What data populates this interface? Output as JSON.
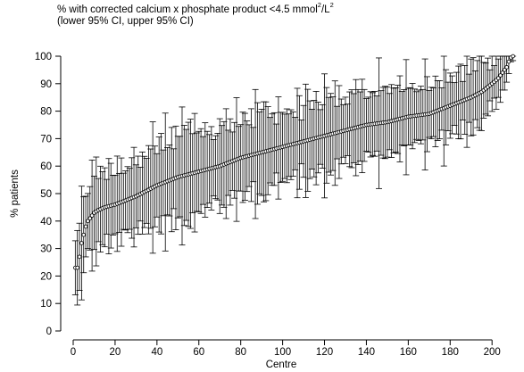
{
  "title": {
    "line1_prefix": "% with corrected calcium x phosphate product <4.5 mmol",
    "line1_sup1": "2",
    "line1_mid": "/L",
    "line1_sup2": "2",
    "line2": "(lower 95% CI, upper 95% CI)"
  },
  "chart_data": {
    "type": "scatter",
    "subtype": "ranked point estimates with 95% CI error bars",
    "title": "% with corrected calcium x phosphate product <4.5 mmol²/L²",
    "subtitle": "(lower 95% CI, upper 95% CI)",
    "xlabel": "Centre",
    "ylabel": "% patients",
    "xlim": [
      0,
      211
    ],
    "ylim": [
      0,
      100
    ],
    "x_ticks": [
      0,
      20,
      40,
      60,
      80,
      100,
      120,
      140,
      160,
      180,
      200
    ],
    "y_ticks": [
      0,
      10,
      20,
      30,
      40,
      50,
      60,
      70,
      80,
      90,
      100
    ],
    "x_tick_labels": [
      "0",
      "20",
      "40",
      "60",
      "80",
      "100",
      "120",
      "140",
      "160",
      "180",
      "200"
    ],
    "y_tick_labels": [
      "0",
      "10",
      "20",
      "30",
      "40",
      "50",
      "60",
      "70",
      "80",
      "90",
      "100"
    ],
    "grid": false,
    "legend": "none",
    "series": [
      {
        "n_centres": 210,
        "marker": "open circle",
        "error_bars": "vertical with caps",
        "rank_anchors": [
          [
            1,
            23
          ],
          [
            2,
            23
          ],
          [
            3,
            27
          ],
          [
            4,
            32
          ],
          [
            5,
            35
          ],
          [
            6,
            38
          ],
          [
            7,
            40
          ],
          [
            8,
            41
          ],
          [
            10,
            43
          ],
          [
            12,
            44
          ],
          [
            15,
            45
          ],
          [
            20,
            46
          ],
          [
            30,
            49
          ],
          [
            40,
            53
          ],
          [
            50,
            56
          ],
          [
            60,
            58
          ],
          [
            70,
            60
          ],
          [
            80,
            63
          ],
          [
            90,
            65
          ],
          [
            100,
            67
          ],
          [
            110,
            69
          ],
          [
            120,
            71
          ],
          [
            130,
            73
          ],
          [
            140,
            75
          ],
          [
            150,
            76
          ],
          [
            160,
            78
          ],
          [
            170,
            79
          ],
          [
            180,
            82
          ],
          [
            190,
            85
          ],
          [
            195,
            87
          ],
          [
            200,
            90
          ],
          [
            203,
            92
          ],
          [
            205,
            94
          ],
          [
            207,
            96
          ],
          [
            208,
            98
          ],
          [
            209,
            99.5
          ],
          [
            210,
            100
          ]
        ],
        "lower_ci_min": 6,
        "upper_ci_max": 100
      }
    ]
  },
  "colors": {
    "foreground": "#000000",
    "background": "#ffffff"
  }
}
